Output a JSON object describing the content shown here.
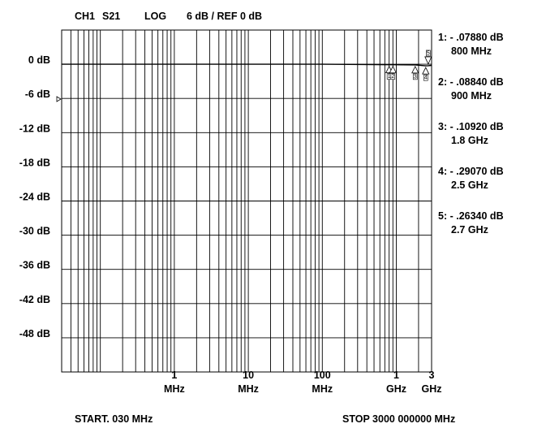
{
  "chart_data": {
    "type": "line",
    "header": {
      "channel": "CH1",
      "parameter": "S21",
      "format": "LOG",
      "scale": "6 dB / REF 0 dB"
    },
    "x_scale": "log",
    "x_range_mhz": [
      0.03,
      3000
    ],
    "y_range_db": [
      -54,
      6
    ],
    "y_ticks": [
      {
        "value": 0,
        "label": "0 dB"
      },
      {
        "value": -6,
        "label": "-6 dB"
      },
      {
        "value": -12,
        "label": "-12 dB"
      },
      {
        "value": -18,
        "label": "-18 dB"
      },
      {
        "value": -24,
        "label": "-24 dB"
      },
      {
        "value": -30,
        "label": "-30 dB"
      },
      {
        "value": -36,
        "label": "-36 dB"
      },
      {
        "value": -42,
        "label": "-42 dB"
      },
      {
        "value": -48,
        "label": "-48 dB"
      }
    ],
    "x_ticks": [
      {
        "value_mhz": 1,
        "num": "1",
        "unit": "MHz"
      },
      {
        "value_mhz": 10,
        "num": "10",
        "unit": "MHz"
      },
      {
        "value_mhz": 100,
        "num": "100",
        "unit": "MHz"
      },
      {
        "value_mhz": 1000,
        "num": "1",
        "unit": "GHz"
      },
      {
        "value_mhz": 3000,
        "num": "3",
        "unit": "GHz"
      }
    ],
    "reference_level_db": 0,
    "grid": true,
    "trace": {
      "x_mhz": [
        0.03,
        100,
        800,
        900,
        1800,
        2500,
        2700,
        3000
      ],
      "y_db": [
        0,
        0,
        -0.0788,
        -0.0884,
        -0.1092,
        -0.2907,
        -0.2634,
        -0.2
      ]
    },
    "markers": [
      {
        "id": "1",
        "value_label": "1: - .07880 dB",
        "freq_label": "800 MHz",
        "freq_mhz": 800,
        "value_db": -0.0788
      },
      {
        "id": "2",
        "value_label": "2: - .08840 dB",
        "freq_label": "900 MHz",
        "freq_mhz": 900,
        "value_db": -0.0884
      },
      {
        "id": "3",
        "value_label": "3: - .10920 dB",
        "freq_label": "1.8 GHz",
        "freq_mhz": 1800,
        "value_db": -0.1092
      },
      {
        "id": "4",
        "value_label": "4: - .29070 dB",
        "freq_label": "2.5 GHz",
        "freq_mhz": 2500,
        "value_db": -0.2907
      },
      {
        "id": "5",
        "value_label": "5: - .26340 dB",
        "freq_label": "2.7 GHz",
        "freq_mhz": 2700,
        "value_db": -0.2634
      }
    ],
    "start_label": "START. 030 MHz",
    "stop_label": "STOP 3000 000000 MHz"
  }
}
